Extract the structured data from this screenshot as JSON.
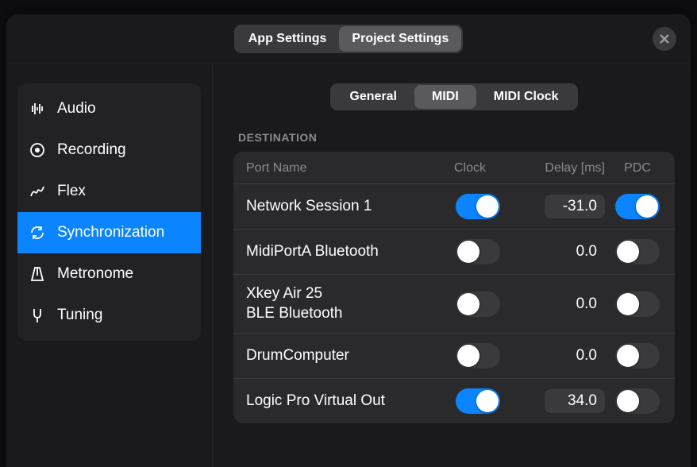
{
  "settings_tabs": {
    "app": "App Settings",
    "project": "Project Settings",
    "active": "project"
  },
  "sidebar": {
    "items": [
      {
        "id": "audio",
        "label": "Audio"
      },
      {
        "id": "recording",
        "label": "Recording"
      },
      {
        "id": "flex",
        "label": "Flex"
      },
      {
        "id": "sync",
        "label": "Synchronization"
      },
      {
        "id": "metronome",
        "label": "Metronome"
      },
      {
        "id": "tuning",
        "label": "Tuning"
      }
    ],
    "active": "sync"
  },
  "sub_tabs": {
    "general": "General",
    "midi": "MIDI",
    "midi_clock": "MIDI Clock",
    "active": "midi"
  },
  "section_label": "DESTINATION",
  "columns": {
    "port": "Port Name",
    "clock": "Clock",
    "delay": "Delay [ms]",
    "pdc": "PDC"
  },
  "rows": [
    {
      "port": "Network Session 1",
      "clock": true,
      "delay": "-31.0",
      "delay_editable": true,
      "pdc": true
    },
    {
      "port": "MidiPortA Bluetooth",
      "clock": false,
      "delay": "0.0",
      "delay_editable": false,
      "pdc": false
    },
    {
      "port": "Xkey Air 25\nBLE Bluetooth",
      "clock": false,
      "delay": "0.0",
      "delay_editable": false,
      "pdc": false
    },
    {
      "port": "DrumComputer",
      "clock": false,
      "delay": "0.0",
      "delay_editable": false,
      "pdc": false
    },
    {
      "port": "Logic Pro Virtual Out",
      "clock": true,
      "delay": "34.0",
      "delay_editable": true,
      "pdc": false
    }
  ],
  "colors": {
    "accent": "#0a84ff",
    "background": "#1a1a1c",
    "panel": "#2a2a2c",
    "segment_bg": "#3a3a3c",
    "segment_active": "#5a5a5c",
    "text": "#ffffff",
    "text_dim": "#8a8a8e"
  }
}
